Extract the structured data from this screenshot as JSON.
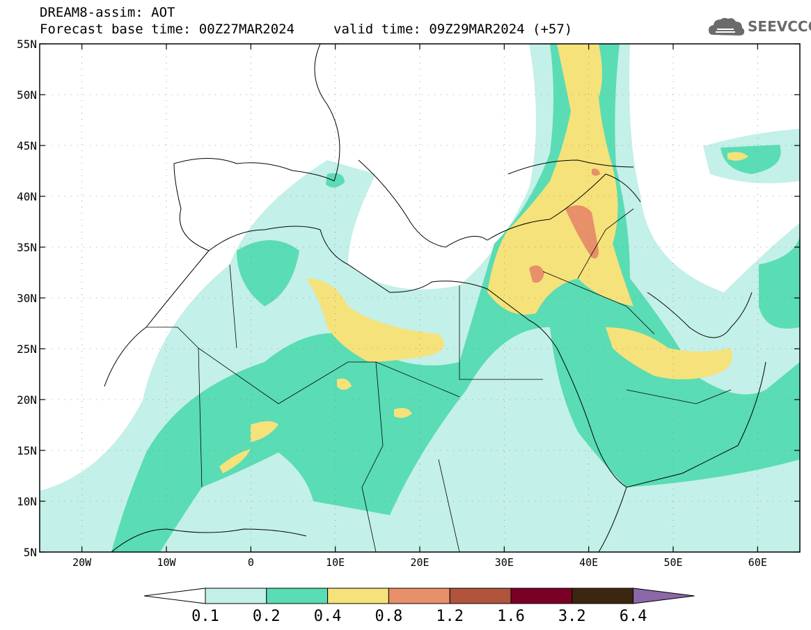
{
  "header": {
    "product": "DREAM8-assim: AOT",
    "base_time": "Forecast base time: 00Z27MAR2024",
    "valid_time": "valid time: 09Z29MAR2024 (+57)"
  },
  "logo": {
    "text": "SEEVCCC",
    "icon": "cloud-icon"
  },
  "map": {
    "lon_range": [
      -25,
      65
    ],
    "lat_range": [
      5,
      55
    ],
    "lat_ticks": [
      {
        "value": 55,
        "label": "55N"
      },
      {
        "value": 50,
        "label": "50N"
      },
      {
        "value": 45,
        "label": "45N"
      },
      {
        "value": 40,
        "label": "40N"
      },
      {
        "value": 35,
        "label": "35N"
      },
      {
        "value": 30,
        "label": "30N"
      },
      {
        "value": 25,
        "label": "25N"
      },
      {
        "value": 20,
        "label": "20N"
      },
      {
        "value": 15,
        "label": "15N"
      },
      {
        "value": 10,
        "label": "10N"
      },
      {
        "value": 5,
        "label": "5N"
      }
    ],
    "lon_ticks": [
      {
        "value": -20,
        "label": "20W"
      },
      {
        "value": -10,
        "label": "10W"
      },
      {
        "value": 0,
        "label": "0"
      },
      {
        "value": 10,
        "label": "10E"
      },
      {
        "value": 20,
        "label": "20E"
      },
      {
        "value": 30,
        "label": "30E"
      },
      {
        "value": 40,
        "label": "40E"
      },
      {
        "value": 50,
        "label": "50E"
      },
      {
        "value": 60,
        "label": "60E"
      }
    ],
    "grid": "dotted"
  },
  "colorbar": {
    "labels": [
      "0.1",
      "0.2",
      "0.4",
      "0.8",
      "1.2",
      "1.6",
      "3.2",
      "6.4"
    ],
    "colors": [
      "#ffffff",
      "#c3f0e8",
      "#5adcb4",
      "#f5e27a",
      "#e8906a",
      "#b0543c",
      "#7a0026",
      "#3c2612",
      "#8c68a8"
    ]
  },
  "aot_colors": {
    "level_0_1": "#c3f0e8",
    "level_0_2": "#5adcb4",
    "level_0_4": "#f5e27a",
    "level_0_8": "#e8906a"
  }
}
